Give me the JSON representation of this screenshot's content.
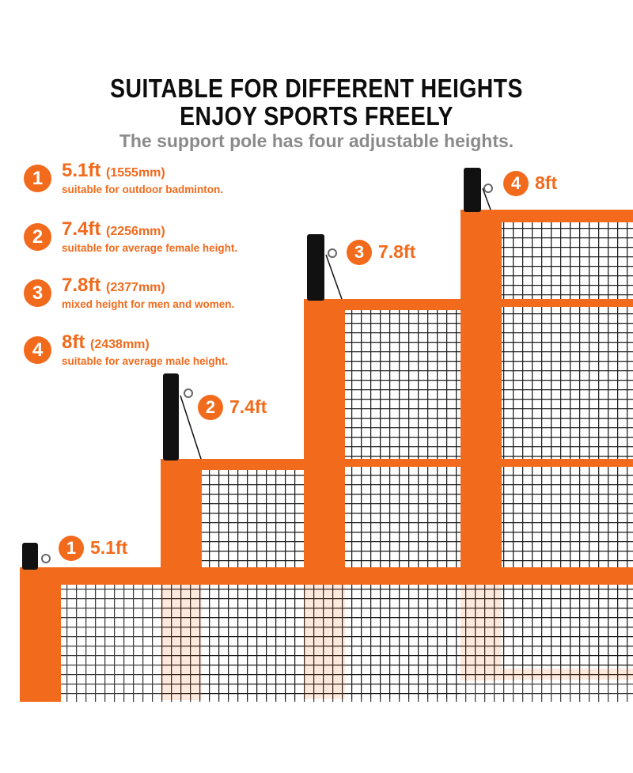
{
  "header": {
    "line1": "SUITABLE FOR DIFFERENT HEIGHTS",
    "line2": "ENJOY SPORTS FREELY",
    "subtitle": "The support pole has four adjustable heights."
  },
  "specs": [
    {
      "num": "1",
      "height": "5.1ft",
      "mm": "(1555mm)",
      "desc": "suitable for outdoor badminton."
    },
    {
      "num": "2",
      "height": "7.4ft",
      "mm": "(2256mm)",
      "desc": "suitable for average female height."
    },
    {
      "num": "3",
      "height": "7.8ft",
      "mm": "(2377mm)",
      "desc": "mixed height for men and women."
    },
    {
      "num": "4",
      "height": "8ft",
      "mm": "(2438mm)",
      "desc": "suitable for average male height."
    }
  ],
  "tags": [
    {
      "num": "1",
      "label": "5.1ft"
    },
    {
      "num": "2",
      "label": "7.4ft"
    },
    {
      "num": "3",
      "label": "7.8ft"
    },
    {
      "num": "4",
      "label": "8ft"
    }
  ],
  "colors": {
    "accent": "#f26a1c",
    "net": "#1a1a1a",
    "pole": "#111111"
  }
}
